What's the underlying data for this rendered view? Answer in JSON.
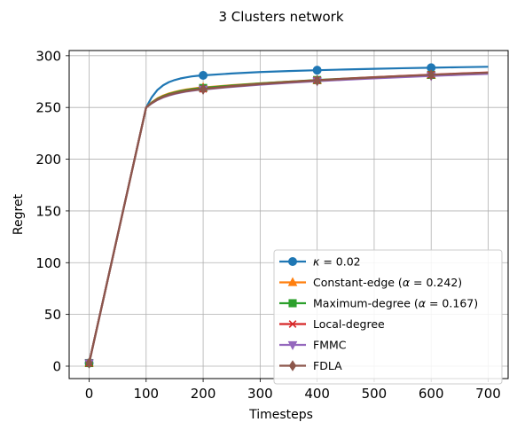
{
  "chart_data": {
    "type": "line",
    "title": "3 Clusters network",
    "xlabel": "Timesteps",
    "ylabel": "Regret",
    "xlim": [
      -35,
      735
    ],
    "ylim": [
      -12,
      305
    ],
    "xticks": [
      0,
      100,
      200,
      300,
      400,
      500,
      600,
      700
    ],
    "yticks": [
      0,
      50,
      100,
      150,
      200,
      250,
      300
    ],
    "grid": true,
    "legend_position": "lower-right",
    "series": [
      {
        "name_prefix": "κ",
        "name_suffix": " = 0.02",
        "color": "#1f77b4",
        "marker": "circle",
        "x": [
          0,
          100,
          110,
          120,
          130,
          140,
          150,
          160,
          170,
          180,
          190,
          200,
          250,
          300,
          350,
          400,
          450,
          500,
          550,
          600,
          650,
          700
        ],
        "y": [
          3,
          250,
          260,
          267,
          271.5,
          274.5,
          276.5,
          278,
          279,
          280,
          280.6,
          281,
          282.8,
          284.2,
          285.2,
          286,
          286.7,
          287.3,
          287.9,
          288.4,
          288.9,
          289.3
        ],
        "marker_x": [
          0,
          200,
          400,
          600
        ]
      },
      {
        "name_prefix": "Constant-edge (",
        "name_alpha": "α",
        "name_suffix": " = 0.242)",
        "color": "#ff7f0e",
        "marker": "triangle-up",
        "x": [
          0,
          100,
          110,
          120,
          130,
          140,
          150,
          160,
          170,
          180,
          190,
          200,
          250,
          300,
          350,
          400,
          450,
          500,
          550,
          600,
          650,
          700
        ],
        "y": [
          3,
          250,
          255,
          258.8,
          261.5,
          263.5,
          265,
          266.3,
          267.3,
          268.1,
          268.8,
          269.3,
          271.5,
          273.3,
          274.9,
          276.3,
          277.6,
          278.8,
          280,
          281.1,
          282.2,
          283.2
        ],
        "marker_x": [
          0,
          200,
          400,
          600
        ]
      },
      {
        "name_prefix": "Maximum-degree (",
        "name_alpha": "α",
        "name_suffix": " = 0.167)",
        "color": "#2ca02c",
        "marker": "square",
        "x": [
          0,
          100,
          110,
          120,
          130,
          140,
          150,
          160,
          170,
          180,
          190,
          200,
          250,
          300,
          350,
          400,
          450,
          500,
          550,
          600,
          650,
          700
        ],
        "y": [
          3,
          250,
          254.7,
          258.4,
          261,
          263,
          264.5,
          265.8,
          266.8,
          267.6,
          268.3,
          268.8,
          271.2,
          273.2,
          274.9,
          276.5,
          277.9,
          279.2,
          280.4,
          281.5,
          282.6,
          283.6
        ],
        "marker_x": [
          0,
          200,
          400,
          600
        ]
      },
      {
        "name_prefix": "Local-degree",
        "name_suffix": "",
        "color": "#d62728",
        "marker": "x",
        "x": [
          0,
          100,
          110,
          120,
          130,
          140,
          150,
          160,
          170,
          180,
          190,
          200,
          250,
          300,
          350,
          400,
          450,
          500,
          550,
          600,
          650,
          700
        ],
        "y": [
          3,
          250,
          254.3,
          257.8,
          260.3,
          262.2,
          263.7,
          264.9,
          265.9,
          266.7,
          267.4,
          267.9,
          270.5,
          272.7,
          274.6,
          276.3,
          277.8,
          279.2,
          280.5,
          281.7,
          282.8,
          283.8
        ],
        "marker_x": [
          0,
          200,
          400,
          600
        ]
      },
      {
        "name_prefix": "FMMC",
        "name_suffix": "",
        "color": "#9467bd",
        "marker": "triangle-down",
        "x": [
          0,
          100,
          110,
          120,
          130,
          140,
          150,
          160,
          170,
          180,
          190,
          200,
          250,
          300,
          350,
          400,
          450,
          500,
          550,
          600,
          650,
          700
        ],
        "y": [
          3,
          250,
          254,
          257.3,
          259.7,
          261.6,
          263.1,
          264.3,
          265.3,
          266.1,
          266.8,
          267.3,
          269.9,
          272,
          273.8,
          275.4,
          276.8,
          278.1,
          279.3,
          280.4,
          281.5,
          282.5
        ],
        "marker_x": [
          0,
          200,
          400,
          600
        ]
      },
      {
        "name_prefix": "FDLA",
        "name_suffix": "",
        "color": "#8c564b",
        "marker": "diamond",
        "x": [
          0,
          100,
          110,
          120,
          130,
          140,
          150,
          160,
          170,
          180,
          190,
          200,
          250,
          300,
          350,
          400,
          450,
          500,
          550,
          600,
          650,
          700
        ],
        "y": [
          3,
          250,
          254.2,
          257.6,
          260.1,
          262,
          263.5,
          264.7,
          265.7,
          266.5,
          267.2,
          267.7,
          270.3,
          272.5,
          274.4,
          276.1,
          277.6,
          279,
          280.3,
          281.5,
          282.6,
          283.6
        ],
        "marker_x": [
          0,
          200,
          400,
          600
        ]
      }
    ]
  }
}
